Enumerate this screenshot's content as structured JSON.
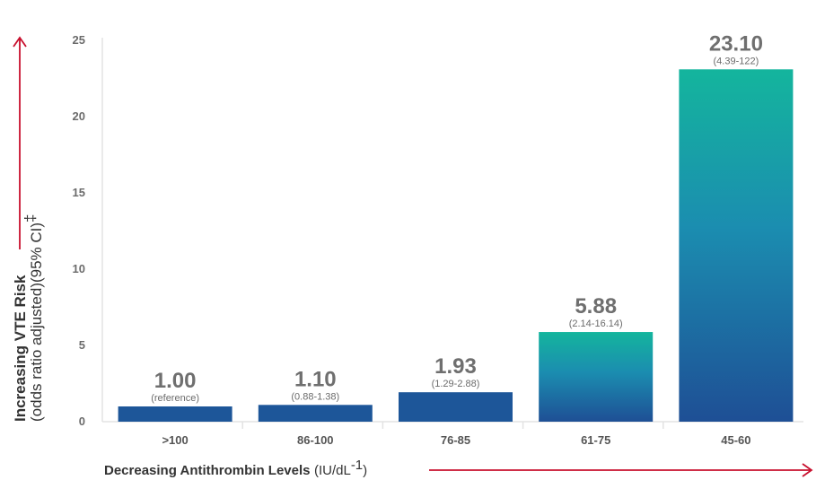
{
  "chart_data": {
    "type": "bar",
    "categories": [
      ">100",
      "86-100",
      "76-85",
      "61-75",
      "45-60"
    ],
    "values": [
      1.0,
      1.1,
      1.93,
      5.88,
      23.1
    ],
    "value_labels": [
      "1.00",
      "1.10",
      "1.93",
      "5.88",
      "23.10"
    ],
    "ci_labels": [
      "(reference)",
      "(0.88-1.38)",
      "(1.29-2.88)",
      "(2.14-16.14)",
      "(4.39-122)"
    ],
    "ylim": [
      0,
      25
    ],
    "yticks": [
      "0",
      "5",
      "10",
      "15",
      "20",
      "25"
    ],
    "ylabel": {
      "bold": "Increasing VTE Risk",
      "regular": "(odds ratio adjusted)(95% CI)",
      "superscript": "‡"
    },
    "xlabel": {
      "bold": "Decreasing Antithrombin Levels",
      "regular": "(IU/dL",
      "superscript": "-1",
      "closing": ")"
    },
    "grid": false,
    "colors": {
      "dark_blue": "#1d5699",
      "gradient_top": "#14b59d",
      "gradient_mid": "#1b8db0",
      "gradient_bottom": "#1e4f95",
      "arrow": "#c8102e",
      "axis": "#e3e3e3"
    }
  }
}
